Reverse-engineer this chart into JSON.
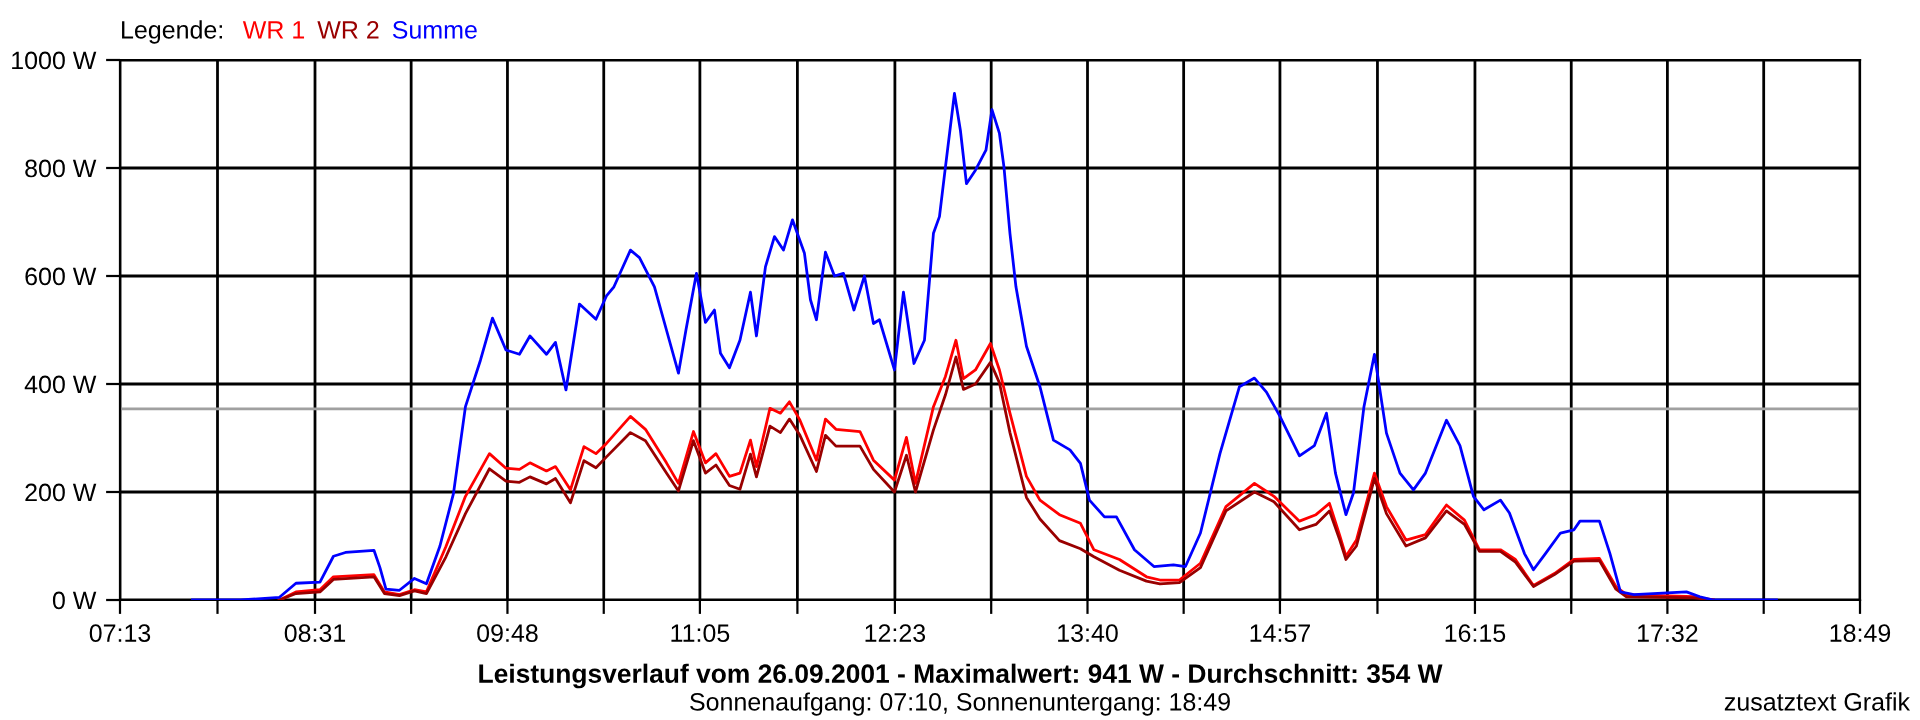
{
  "chart_data": {
    "type": "line",
    "title": "Leistungsverlauf vom 26.09.2001 - Maximalwert: 941 W - Durchschnitt: 354 W",
    "subtitle": "Sonnenaufgang: 07:10, Sonnenuntergang: 18:49",
    "legend_title": "Legende:",
    "annotations": [
      "zusatztext Grafik"
    ],
    "xlim": [
      7.217,
      18.817
    ],
    "xticks": [
      {
        "value": 7.217,
        "label": "07:13"
      },
      {
        "value": 7.867,
        "label": null
      },
      {
        "value": 8.517,
        "label": "08:31"
      },
      {
        "value": 9.158,
        "label": null
      },
      {
        "value": 9.8,
        "label": "09:48"
      },
      {
        "value": 10.442,
        "label": null
      },
      {
        "value": 11.083,
        "label": "11:05"
      },
      {
        "value": 11.733,
        "label": null
      },
      {
        "value": 12.383,
        "label": "12:23"
      },
      {
        "value": 13.025,
        "label": null
      },
      {
        "value": 13.667,
        "label": "13:40"
      },
      {
        "value": 14.308,
        "label": null
      },
      {
        "value": 14.95,
        "label": "14:57"
      },
      {
        "value": 15.6,
        "label": null
      },
      {
        "value": 16.25,
        "label": "16:15"
      },
      {
        "value": 16.892,
        "label": null
      },
      {
        "value": 17.533,
        "label": "17:32"
      },
      {
        "value": 18.175,
        "label": null
      },
      {
        "value": 18.817,
        "label": "18:49"
      }
    ],
    "ylim": [
      0,
      1000
    ],
    "yticks": [
      {
        "value": 0,
        "label": "0 W"
      },
      {
        "value": 200,
        "label": "200 W"
      },
      {
        "value": 400,
        "label": "400 W"
      },
      {
        "value": 600,
        "label": "600 W"
      },
      {
        "value": 800,
        "label": "800 W"
      },
      {
        "value": 1000,
        "label": "1000 W"
      }
    ],
    "grid": true,
    "legend": "top left",
    "ref_lines": [
      {
        "axis": "y",
        "value": 354,
        "color": "#a0a0a0"
      }
    ],
    "series": [
      {
        "name": "WR 1",
        "color": "#ff0000",
        "x": [
          8.28,
          8.39,
          8.55,
          8.64,
          8.91,
          8.98,
          9.08,
          9.18,
          9.26,
          9.39,
          9.52,
          9.68,
          9.79,
          9.88,
          9.95,
          10.06,
          10.12,
          10.22,
          10.31,
          10.39,
          10.46,
          10.62,
          10.72,
          10.86,
          10.94,
          11.04,
          11.12,
          11.19,
          11.28,
          11.35,
          11.42,
          11.46,
          11.55,
          11.62,
          11.68,
          11.75,
          11.86,
          11.92,
          11.99,
          12.15,
          12.24,
          12.38,
          12.46,
          12.52,
          12.64,
          12.72,
          12.79,
          12.84,
          12.92,
          13.02,
          13.08,
          13.15,
          13.26,
          13.35,
          13.48,
          13.62,
          13.71,
          13.88,
          14.06,
          14.15,
          14.28,
          14.42,
          14.59,
          14.78,
          14.91,
          15.08,
          15.19,
          15.28,
          15.35,
          15.39,
          15.46,
          15.58,
          15.66,
          15.79,
          15.92,
          16.06,
          16.18,
          16.28,
          16.42,
          16.52,
          16.64,
          16.78,
          16.91,
          17.08,
          17.19,
          17.26,
          17.71,
          17.84
        ],
        "values": [
          0,
          15,
          19,
          43,
          47,
          15,
          10,
          19,
          15,
          99,
          192,
          271,
          244,
          242,
          254,
          239,
          247,
          204,
          284,
          271,
          290,
          340,
          316,
          254,
          216,
          312,
          254,
          271,
          229,
          235,
          296,
          247,
          355,
          346,
          367,
          333,
          259,
          335,
          316,
          312,
          259,
          222,
          301,
          216,
          358,
          414,
          481,
          410,
          426,
          475,
          426,
          346,
          229,
          185,
          158,
          142,
          93,
          75,
          43,
          37,
          37,
          68,
          173,
          216,
          192,
          146,
          158,
          179,
          118,
          81,
          111,
          235,
          173,
          111,
          121,
          176,
          148,
          93,
          93,
          75,
          27,
          49,
          75,
          77,
          25,
          10,
          6,
          0
        ]
      },
      {
        "name": "WR 2",
        "color": "#990000",
        "x": [
          8.28,
          8.39,
          8.55,
          8.64,
          8.91,
          8.98,
          9.08,
          9.18,
          9.26,
          9.39,
          9.52,
          9.68,
          9.79,
          9.88,
          9.95,
          10.06,
          10.12,
          10.22,
          10.31,
          10.39,
          10.46,
          10.62,
          10.72,
          10.86,
          10.94,
          11.04,
          11.12,
          11.19,
          11.28,
          11.35,
          11.42,
          11.46,
          11.55,
          11.62,
          11.68,
          11.75,
          11.86,
          11.92,
          11.99,
          12.15,
          12.24,
          12.38,
          12.46,
          12.52,
          12.64,
          12.72,
          12.79,
          12.84,
          12.92,
          13.02,
          13.08,
          13.15,
          13.26,
          13.35,
          13.48,
          13.62,
          13.71,
          13.88,
          14.06,
          14.15,
          14.28,
          14.42,
          14.59,
          14.78,
          14.91,
          15.08,
          15.19,
          15.28,
          15.35,
          15.39,
          15.46,
          15.58,
          15.66,
          15.79,
          15.92,
          16.06,
          16.18,
          16.28,
          16.42,
          16.52,
          16.64,
          16.78,
          16.91,
          17.08,
          17.19,
          17.26,
          17.71,
          17.84
        ],
        "values": [
          0,
          12,
          15,
          38,
          43,
          12,
          8,
          17,
          12,
          80,
          160,
          243,
          220,
          218,
          228,
          215,
          225,
          180,
          258,
          245,
          265,
          310,
          295,
          235,
          202,
          295,
          235,
          250,
          212,
          205,
          270,
          228,
          322,
          310,
          335,
          305,
          238,
          305,
          285,
          285,
          242,
          200,
          268,
          200,
          315,
          380,
          450,
          390,
          400,
          440,
          402,
          310,
          190,
          150,
          110,
          95,
          80,
          55,
          35,
          30,
          32,
          60,
          165,
          200,
          182,
          130,
          140,
          165,
          110,
          75,
          100,
          225,
          160,
          100,
          115,
          165,
          140,
          90,
          90,
          70,
          25,
          47,
          72,
          73,
          20,
          6,
          4,
          0
        ]
      },
      {
        "name": "Summe",
        "color": "#0000ff",
        "x": [
          7.7,
          8.02,
          8.28,
          8.39,
          8.55,
          8.64,
          8.72,
          8.91,
          8.95,
          8.99,
          9.08,
          9.18,
          9.26,
          9.35,
          9.44,
          9.52,
          9.62,
          9.7,
          9.79,
          9.88,
          9.95,
          10.06,
          10.12,
          10.19,
          10.28,
          10.39,
          10.46,
          10.51,
          10.62,
          10.68,
          10.78,
          10.86,
          10.94,
          10.99,
          11.06,
          11.12,
          11.18,
          11.22,
          11.28,
          11.35,
          11.42,
          11.46,
          11.52,
          11.58,
          11.64,
          11.7,
          11.78,
          11.82,
          11.86,
          11.92,
          11.98,
          12.04,
          12.11,
          12.18,
          12.24,
          12.28,
          12.38,
          12.44,
          12.51,
          12.58,
          12.64,
          12.68,
          12.72,
          12.78,
          12.82,
          12.86,
          12.92,
          12.99,
          13.03,
          13.08,
          13.11,
          13.15,
          13.19,
          13.26,
          13.35,
          13.44,
          13.55,
          13.62,
          13.68,
          13.78,
          13.86,
          13.98,
          14.11,
          14.24,
          14.32,
          14.42,
          14.55,
          14.68,
          14.78,
          14.86,
          14.95,
          15.08,
          15.18,
          15.26,
          15.32,
          15.39,
          15.44,
          15.51,
          15.58,
          15.66,
          15.75,
          15.84,
          15.92,
          16.06,
          16.15,
          16.24,
          16.31,
          16.42,
          16.48,
          16.58,
          16.64,
          16.72,
          16.82,
          16.91,
          16.95,
          17.08,
          17.15,
          17.22,
          17.31,
          17.66,
          17.75,
          17.84,
          18.26
        ],
        "values": [
          0,
          0,
          5,
          31,
          33,
          81,
          88,
          92,
          60,
          20,
          18,
          40,
          30,
          100,
          197,
          358,
          444,
          522,
          463,
          455,
          489,
          455,
          477,
          389,
          548,
          520,
          563,
          580,
          648,
          634,
          580,
          500,
          420,
          500,
          605,
          514,
          537,
          457,
          430,
          481,
          570,
          489,
          617,
          673,
          648,
          704,
          642,
          556,
          519,
          644,
          600,
          605,
          537,
          600,
          512,
          519,
          426,
          570,
          438,
          481,
          679,
          710,
          802,
          938,
          869,
          771,
          796,
          833,
          908,
          864,
          802,
          679,
          580,
          470,
          395,
          296,
          278,
          253,
          185,
          154,
          154,
          93,
          62,
          65,
          62,
          124,
          271,
          395,
          411,
          385,
          340,
          267,
          286,
          346,
          235,
          158,
          198,
          358,
          455,
          309,
          235,
          204,
          235,
          333,
          286,
          192,
          167,
          185,
          161,
          86,
          56,
          86,
          124,
          130,
          146,
          146,
          86,
          15,
          10,
          15,
          6,
          0,
          0
        ]
      }
    ]
  }
}
